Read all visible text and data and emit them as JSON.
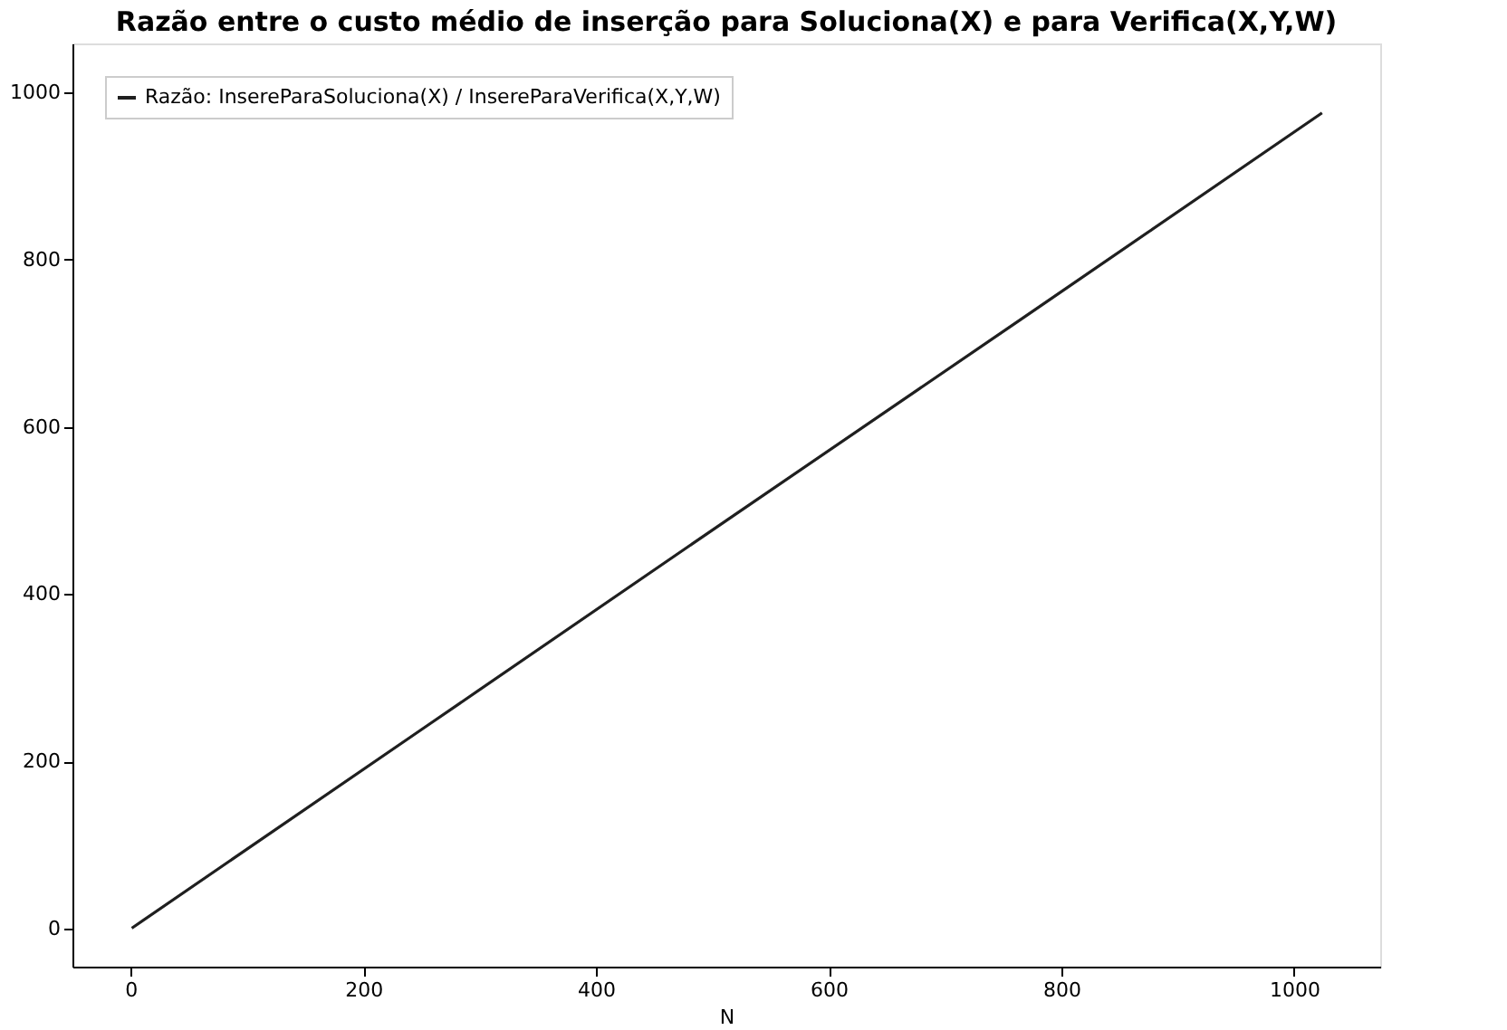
{
  "chart_data": {
    "type": "line",
    "title": "Razão entre o custo médio de inserção para Soluciona(X) e para Verifica(X,Y,W)",
    "xlabel": "N",
    "x": [
      1,
      256,
      512,
      768,
      1024
    ],
    "series": [
      {
        "name": "Razão: InsereParaSoluciona(X) / InsereParaVerifica(X,Y,W)",
        "color": "#1f1f1f",
        "values": [
          1,
          244,
          488,
          731,
          975
        ]
      }
    ],
    "xlim": [
      -50,
      1074
    ],
    "xticks": [
      0,
      200,
      400,
      600,
      800,
      1000
    ],
    "ylim": [
      -45,
      1058
    ],
    "yticks": [
      0,
      200,
      400,
      600,
      800,
      1000
    ],
    "grid": false,
    "legend": "top left",
    "marker": "none",
    "line_style": "solid"
  }
}
